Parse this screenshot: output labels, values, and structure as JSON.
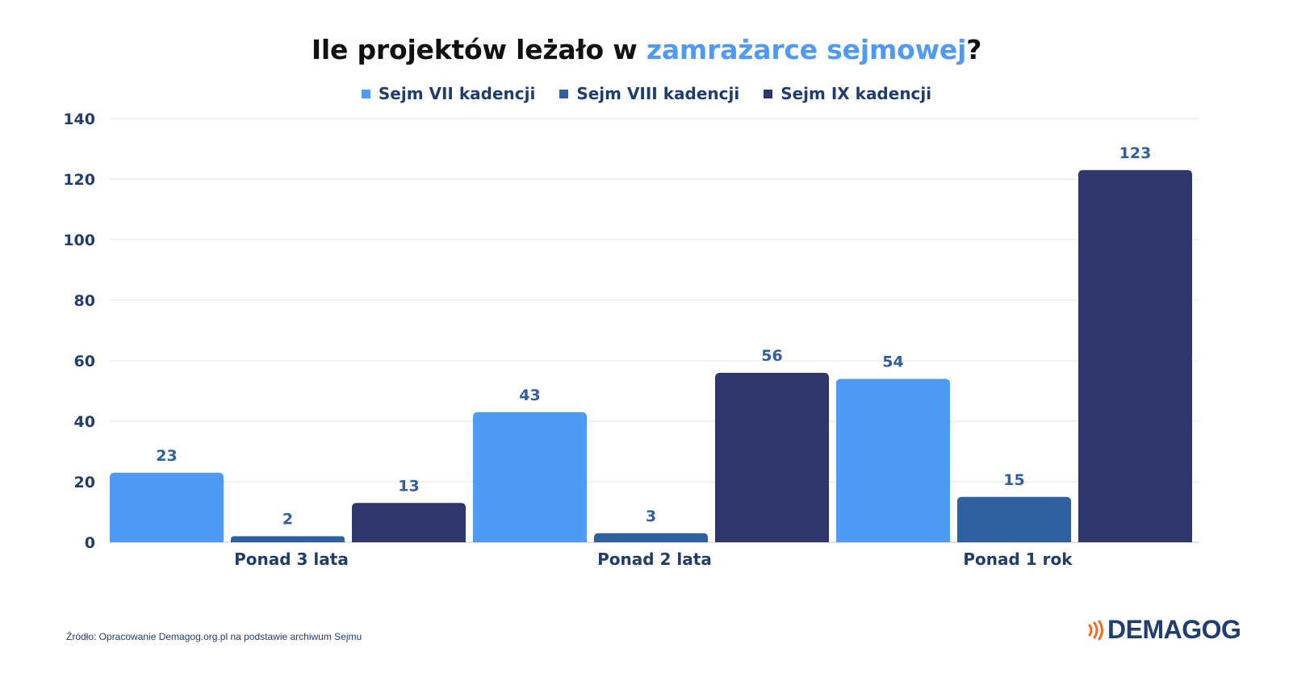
{
  "title": {
    "prefix": "Ile projektów leżało w ",
    "highlight": "zamrażarce sejmowej",
    "suffix": "?"
  },
  "colors": {
    "series_1": "#4f9af5",
    "series_2": "#2e5f9e",
    "series_3": "#2f366c",
    "axis_text": "#1f3d6e",
    "grid": "#dfe3ea",
    "title_accent": "#4f9af5",
    "logo_accent": "#f26b21"
  },
  "chart_data": {
    "type": "bar",
    "categories": [
      "Ponad 3 lata",
      "Ponad 2 lata",
      "Ponad 1 rok"
    ],
    "series": [
      {
        "name": "Sejm VII kadencji",
        "values": [
          23,
          43,
          54
        ]
      },
      {
        "name": "Sejm VIII kadencji",
        "values": [
          2,
          3,
          15
        ]
      },
      {
        "name": "Sejm IX kadencji",
        "values": [
          13,
          56,
          123
        ]
      }
    ],
    "y_ticks": [
      "0",
      "20",
      "40",
      "60",
      "80",
      "100",
      "120",
      "140"
    ],
    "ylim": [
      0,
      140
    ],
    "grid": true,
    "legend_position": "top-center",
    "data_labels": true
  },
  "footer": {
    "source": "Źródło: Opracowanie Demagog.org.pl na podstawie archiwum Sejmu",
    "logo_text": "DEMAGOG",
    "logo_icon": "signal-waves-icon"
  }
}
